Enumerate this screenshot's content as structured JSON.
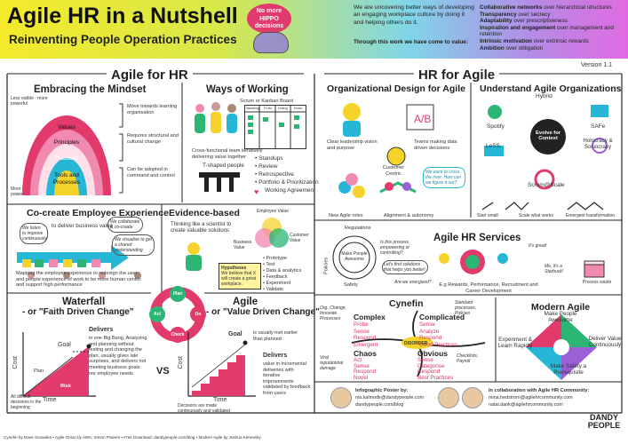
{
  "header": {
    "title": "Agile HR in a Nutshell",
    "subtitle": "Reinventing People Operation Practices",
    "hippo_text": "No more HIPPO decisions",
    "intro": "We are uncovering better ways of developing an engaging workplace culture by doing it and helping others do it.",
    "intro_bold": "Through this work we have come to value:",
    "values": [
      {
        "bold": "Collaborative networks",
        "rest": " over hierarchical structures"
      },
      {
        "bold": "Transparency",
        "rest": " over secrecy"
      },
      {
        "bold": "Adaptability",
        "rest": " over prescriptiveness"
      },
      {
        "bold": "Inspiration and engagement",
        "rest": " over management and retention"
      },
      {
        "bold": "Intrinsic motivation",
        "rest": " over extrinsic rewards"
      },
      {
        "bold": "Ambition",
        "rest": " over obligation"
      }
    ],
    "version": "Version 1.1"
  },
  "left": {
    "heading": "Agile for HR",
    "mindset": {
      "title": "Embracing the Mindset",
      "less_visible": "Less visible - more powerful",
      "more_visible": "More visible - less powerful",
      "rings": [
        "Mindset",
        "Values",
        "Principles",
        "Practices",
        "Tools and Processes"
      ],
      "notes": [
        "Move towards learning organisation",
        "Requires structural and cultural change",
        "Can be adopted in command and control"
      ]
    },
    "ways": {
      "title": "Ways of Working",
      "board": "Scrum or Kanban Board",
      "board_cols": [
        "Backlog",
        "To do",
        "Doing",
        "Done"
      ],
      "cross": "Cross-functional team iteratively delivering value together",
      "tshape": "T-shaped people",
      "list": [
        "• Standups",
        "• Review",
        "• Retrospective",
        "• Portfolio & Prioritization",
        "Working Agreement"
      ]
    },
    "cocreate": {
      "title": "Co-create Employee Experience",
      "deliver": "to deliver business value",
      "bubbles": [
        "We listen to improve continuously",
        "We collaborate & co-create",
        "We visualise to get a shared understanding"
      ],
      "desc": "Mapping the employee experience to redesign the user and people experience of work to be more human centric and support high performance"
    },
    "evidence": {
      "title": "Evidence-based",
      "think": "Thinking like a scientist to create valuable solutions",
      "venn": [
        "Employee Value",
        "Business Value",
        "Customer Value"
      ],
      "hyp_title": "Hypotheses",
      "hyp": "We believe that X will create a great workplace.",
      "list": [
        "• Prototype",
        "• Test",
        "• Data & analytics",
        "• Feedback",
        "• Experiment",
        "• Validate"
      ]
    },
    "pdca": [
      "Plan",
      "Do",
      "Check",
      "Act"
    ],
    "waterfall": {
      "title": "Waterfall",
      "subtitle": "- or \"Faith Driven Change\"",
      "goal": "Goal",
      "delivers": "Delivers",
      "desc": "in one Big Bang. Analyzing and planning without testing and changing the plan, usually gives late surprises, and delivers not meeting business goals nor employee needs",
      "plan": "Plan",
      "risk": "Risk",
      "cost": "Cost",
      "time": "Time",
      "footnote": "All difficult decisions in the beginning"
    },
    "vs": "VS",
    "agile": {
      "title": "Agile",
      "subtitle": "- or \"Value Driven Change\"",
      "goal": "Goal",
      "goal_note": "is usually met earlier than planned",
      "delivers": "Delivers",
      "desc": "value in incremental deliveries with iterative improvements validated by feedback from users",
      "cost": "Cost",
      "time": "Time",
      "footnote": "Decisions are made continuously and validated"
    }
  },
  "right": {
    "heading": "HR for Agile",
    "org": {
      "title": "Organizational Design for Agile",
      "items": [
        "Clear leadership vision and purpose",
        "Teams making data driven decisions",
        "Customer Centric",
        "New Agile roles",
        "Alignment & autonomy"
      ],
      "note": "We want to cross the river. How can we figure it out?"
    },
    "understand": {
      "title": "Understand Agile Organizations",
      "frameworks": [
        "Hybrid",
        "Spotify",
        "LeSS",
        "SAFe",
        "Holocracy & Sociocracy",
        "Scrum@Scale"
      ],
      "center": "Evolve for Context",
      "steps": [
        "Start small",
        "Scale what works",
        "Emergent transformation"
      ]
    },
    "services": {
      "title": "Agile HR Services",
      "regulations": "Regulations",
      "policies": "Policies",
      "make_awesome": "Make People Awesome",
      "safety": "Safety",
      "quotes": [
        "Is this process empowering or controlling?",
        "Let's find solutions that helps you better!",
        "Are we energized?"
      ],
      "great": "It's great!",
      "starbuck": "Me, it's a Starbuck!",
      "rewards": "E.g Rewards, Performance, Recruitment and Career Development",
      "process": "Process waste"
    },
    "cynefin": {
      "title": "Cynefin",
      "complex": {
        "title": "Complex",
        "steps": [
          "Probe",
          "Sense",
          "Respond",
          "Emergent"
        ]
      },
      "complicated": {
        "title": "Complicated",
        "steps": [
          "Sense",
          "Analyze",
          "Respond",
          "Good Practices"
        ]
      },
      "chaos": {
        "title": "Chaos",
        "steps": [
          "Act",
          "Sense",
          "Respond",
          "Novel"
        ]
      },
      "obvious": {
        "title": "Obvious",
        "steps": [
          "Sense",
          "Categorise",
          "Respond",
          "Best Practices"
        ]
      },
      "disorder": "DISORDER",
      "notes": [
        "Org. Change, Innovate Processes",
        "Standard processes, Policies",
        "Viral reputational damage",
        "Checklists, Payroll"
      ]
    },
    "modern": {
      "title": "Modern Agile",
      "quads": [
        "Make People Awesome",
        "Deliver Value Continuously",
        "Make Safety a Prerequisite",
        "Experiment & Learn Rapidly"
      ]
    },
    "poster": {
      "title": "Infographic Poster by:",
      "lines": [
        "nia.kalmodir@dandypeople.com",
        "dandypeople.com/blog"
      ],
      "collab_title": "In collaboration with Agile HR Community:",
      "collab": [
        "mina.hedstrom@agilehrcommunity.com",
        "natal.dank@agilehrcommunity.com"
      ],
      "logo": "DANDY PEOPLE"
    }
  },
  "footer": "Cynefin by Dave Snowden  •  Agile Onion by AWA, Simon Powers  •  Free Download: dandypeople.com/blog  •  Modern Agile by Joshua Kerievsky",
  "colors": {
    "pink": "#e23a6b",
    "green": "#2bb673",
    "yellow": "#f6d32b",
    "cyan": "#27b7d6",
    "purple": "#9b5fd6"
  }
}
